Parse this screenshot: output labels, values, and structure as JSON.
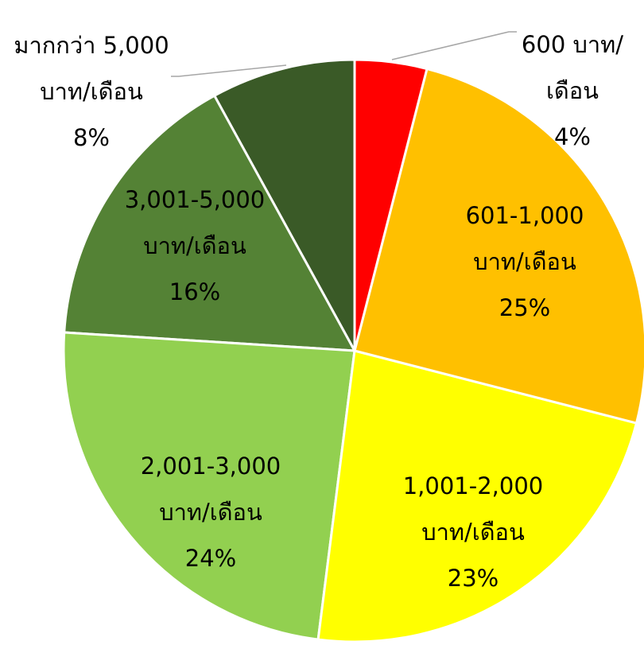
{
  "chart_data": {
    "type": "pie",
    "categories": [
      "600 บาท/เดือน",
      "601-1,000 บาท/เดือน",
      "1,001-2,000 บาท/เดือน",
      "2,001-3,000 บาท/เดือน",
      "3,001-5,000 บาท/เดือน",
      "มากกว่า 5,000 บาท/เดือน"
    ],
    "values": [
      4,
      25,
      23,
      24,
      16,
      8
    ],
    "value_labels": [
      "4%",
      "25%",
      "23%",
      "24%",
      "16%",
      "8%"
    ],
    "colors": [
      "#ff0000",
      "#ffc000",
      "#ffff00",
      "#92d050",
      "#548235",
      "#3a5a27"
    ]
  }
}
